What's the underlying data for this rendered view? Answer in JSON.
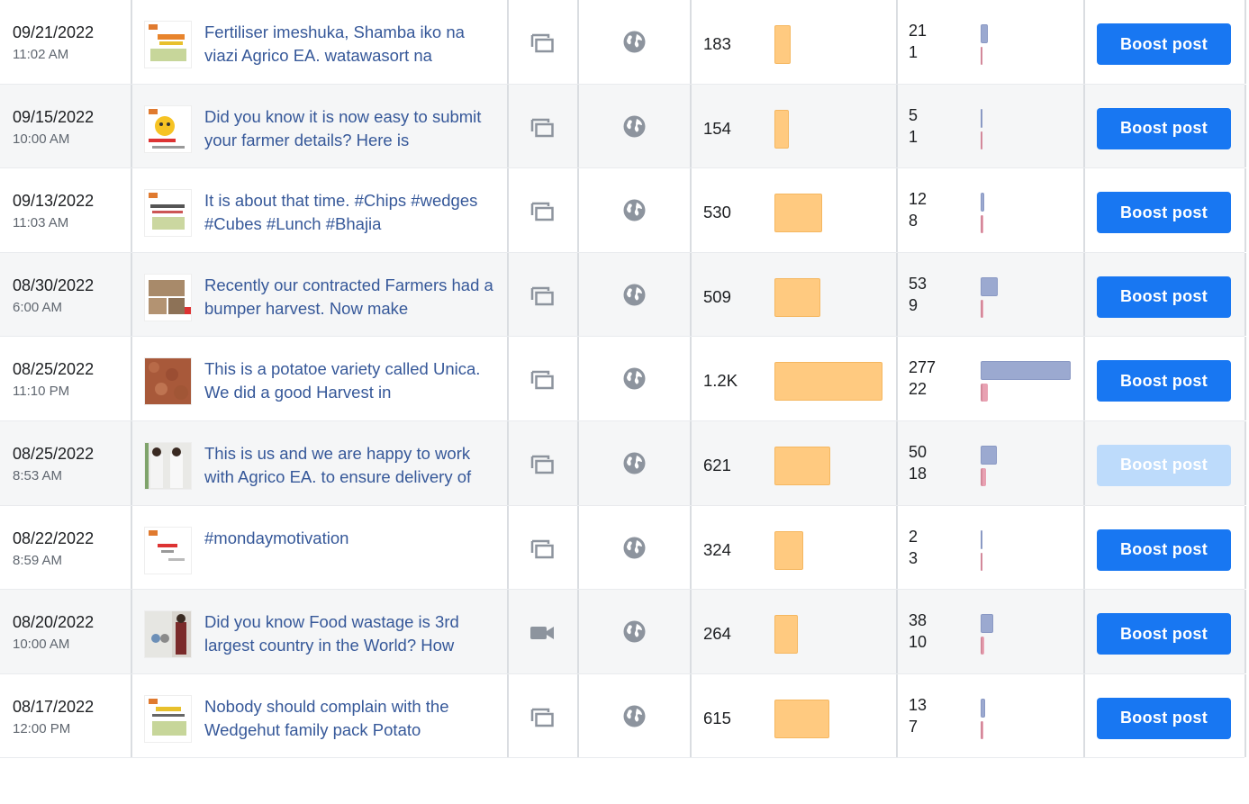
{
  "icons": {
    "type_album": "album-icon",
    "type_video": "video-camera-icon",
    "audience": "globe-icon"
  },
  "colors": {
    "boost": "#1877f2",
    "boost_disabled": "#bddbfb",
    "reach_bar": "#ffca80",
    "engagement_bar": "#9ba9d0",
    "reaction_bar": "#e8a1b2",
    "link": "#365899"
  },
  "posts": [
    {
      "date": "09/21/2022",
      "time": "11:02 AM",
      "text": "Fertiliser imeshuka, Shamba iko na viazi Agrico EA. watawasort na",
      "type": "album",
      "reach": "183",
      "reach_value": 183,
      "engagement": "21",
      "engagement_value": 21,
      "reactions": "1",
      "reactions_value": 1,
      "boost": "Boost post",
      "boost_enabled": true
    },
    {
      "date": "09/15/2022",
      "time": "10:00 AM",
      "text": "Did you know it is now easy to submit your farmer details? Here is",
      "type": "album",
      "reach": "154",
      "reach_value": 154,
      "engagement": "5",
      "engagement_value": 5,
      "reactions": "1",
      "reactions_value": 1,
      "boost": "Boost post",
      "boost_enabled": true
    },
    {
      "date": "09/13/2022",
      "time": "11:03 AM",
      "text": "It is about that time. #Chips #wedges #Cubes #Lunch #Bhajia",
      "type": "album",
      "reach": "530",
      "reach_value": 530,
      "engagement": "12",
      "engagement_value": 12,
      "reactions": "8",
      "reactions_value": 8,
      "boost": "Boost post",
      "boost_enabled": true
    },
    {
      "date": "08/30/2022",
      "time": "6:00 AM",
      "text": "Recently our contracted Farmers had a bumper harvest. Now make",
      "type": "album",
      "reach": "509",
      "reach_value": 509,
      "engagement": "53",
      "engagement_value": 53,
      "reactions": "9",
      "reactions_value": 9,
      "boost": "Boost post",
      "boost_enabled": true
    },
    {
      "date": "08/25/2022",
      "time": "11:10 PM",
      "text": "This is a potatoe variety called Unica. We did a good Harvest in",
      "type": "album",
      "reach": "1.2K",
      "reach_value": 1200,
      "engagement": "277",
      "engagement_value": 277,
      "reactions": "22",
      "reactions_value": 22,
      "boost": "Boost post",
      "boost_enabled": true
    },
    {
      "date": "08/25/2022",
      "time": "8:53 AM",
      "text": "This is us and we are happy to work with Agrico EA. to ensure delivery of",
      "type": "album",
      "reach": "621",
      "reach_value": 621,
      "engagement": "50",
      "engagement_value": 50,
      "reactions": "18",
      "reactions_value": 18,
      "boost": "Boost post",
      "boost_enabled": false
    },
    {
      "date": "08/22/2022",
      "time": "8:59 AM",
      "text": "#mondaymotivation",
      "type": "album",
      "reach": "324",
      "reach_value": 324,
      "engagement": "2",
      "engagement_value": 2,
      "reactions": "3",
      "reactions_value": 3,
      "boost": "Boost post",
      "boost_enabled": true
    },
    {
      "date": "08/20/2022",
      "time": "10:00 AM",
      "text": "Did you know Food wastage is 3rd largest country in the World? How",
      "type": "video",
      "reach": "264",
      "reach_value": 264,
      "engagement": "38",
      "engagement_value": 38,
      "reactions": "10",
      "reactions_value": 10,
      "boost": "Boost post",
      "boost_enabled": true
    },
    {
      "date": "08/17/2022",
      "time": "12:00 PM",
      "text": "Nobody should complain with the Wedgehut family pack Potato",
      "type": "album",
      "reach": "615",
      "reach_value": 615,
      "engagement": "13",
      "engagement_value": 13,
      "reactions": "7",
      "reactions_value": 7,
      "boost": "Boost post",
      "boost_enabled": true
    }
  ]
}
